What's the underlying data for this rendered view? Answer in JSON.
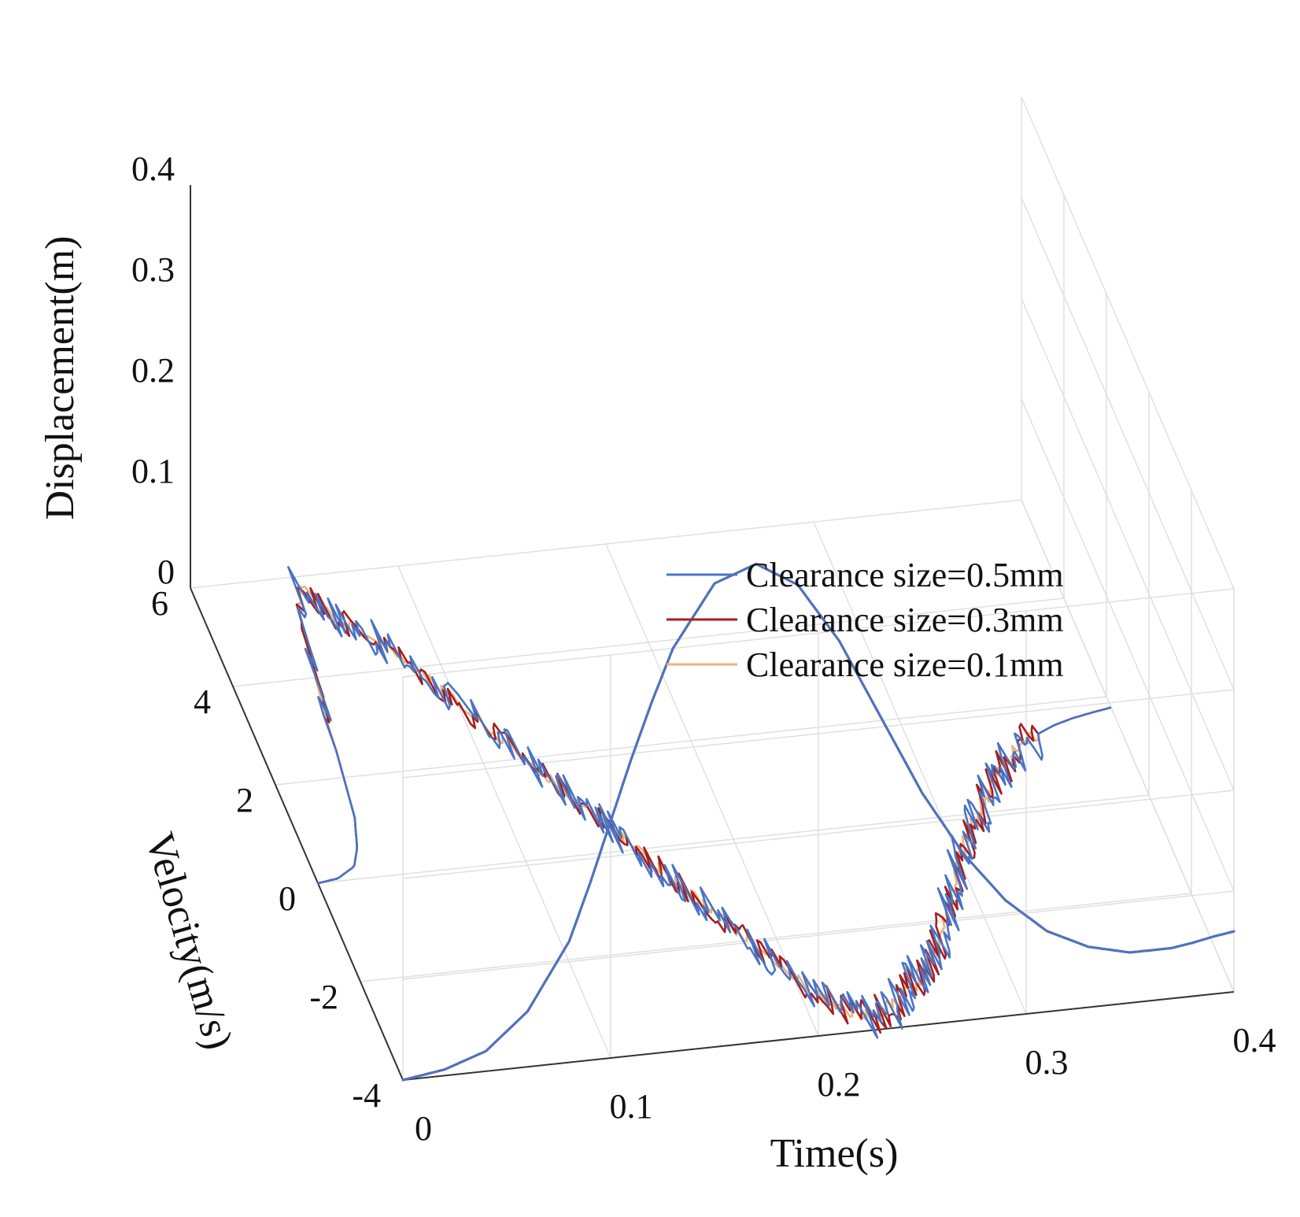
{
  "chart_data": {
    "type": "line3d",
    "xlabel": "Time(s)",
    "ylabel": "Velocity(m/s)",
    "zlabel": "Displacement(m)",
    "xlim": [
      0,
      0.4
    ],
    "ylim": [
      -4,
      6
    ],
    "zlim": [
      0,
      0.4
    ],
    "x_ticks": [
      "0",
      "0.1",
      "0.2",
      "0.3",
      "0.4"
    ],
    "y_ticks": [
      "-4",
      "-2",
      "0",
      "2",
      "4",
      "6"
    ],
    "z_ticks": [
      "0",
      "0.1",
      "0.2",
      "0.3",
      "0.4"
    ],
    "legend": {
      "location": "right-middle",
      "entries": [
        "Clearance size=0.5mm",
        "Clearance size=0.3mm",
        "Clearance size=0.1mm"
      ]
    },
    "series": [
      {
        "name": "Clearance size=0.5mm",
        "color": "#4a74c4",
        "noise": 0.06
      },
      {
        "name": "Clearance size=0.3mm",
        "color": "#a51f1f",
        "noise": 0.045
      },
      {
        "name": "Clearance size=0.1mm",
        "color": "#efb277",
        "noise": 0.02
      }
    ],
    "displacement_curve": {
      "velocity_plane": -4,
      "time": [
        0,
        0.02,
        0.04,
        0.06,
        0.08,
        0.09,
        0.1,
        0.11,
        0.12,
        0.13,
        0.15,
        0.17,
        0.19,
        0.21,
        0.23,
        0.25,
        0.27,
        0.29,
        0.31,
        0.33,
        0.35,
        0.37,
        0.38,
        0.39,
        0.4
      ],
      "displacement": [
        0,
        0.006,
        0.02,
        0.055,
        0.12,
        0.175,
        0.235,
        0.295,
        0.35,
        0.4,
        0.46,
        0.475,
        0.45,
        0.39,
        0.31,
        0.23,
        0.165,
        0.115,
        0.08,
        0.06,
        0.05,
        0.05,
        0.053,
        0.057,
        0.06
      ]
    },
    "velocity_curve": {
      "displacement_plane": 0,
      "time": [
        0,
        0.01,
        0.02,
        0.025,
        0.03,
        0.035,
        0.04,
        0.045,
        0.05,
        0.055,
        0.06,
        0.07,
        0.08,
        0.09,
        0.1,
        0.11,
        0.12,
        0.13,
        0.14,
        0.15,
        0.16,
        0.17,
        0.18,
        0.19,
        0.2,
        0.21,
        0.22,
        0.23,
        0.24,
        0.25,
        0.26,
        0.27,
        0.28,
        0.29,
        0.3,
        0.31,
        0.32,
        0.33,
        0.34,
        0.35,
        0.36,
        0.37,
        0.38,
        0.39,
        0.4
      ],
      "velocity": [
        0,
        0.05,
        0.25,
        0.6,
        1.2,
        2.6,
        4.0,
        5.2,
        5.9,
        5.5,
        5.2,
        4.8,
        4.4,
        3.8,
        3.2,
        2.6,
        2.0,
        1.4,
        0.8,
        0.2,
        -0.4,
        -1.0,
        -1.6,
        -2.2,
        -2.8,
        -3.3,
        -3.6,
        -3.75,
        -3.55,
        -3.3,
        -3.0,
        -2.6,
        -2.1,
        -1.5,
        -0.9,
        -0.35,
        0.1,
        0.55,
        0.9,
        1.2,
        1.4,
        1.55,
        1.65,
        1.72,
        1.78
      ]
    }
  }
}
